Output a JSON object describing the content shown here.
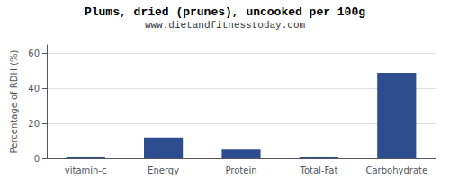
{
  "chart_data": {
    "type": "bar",
    "title": "Plums, dried (prunes), uncooked per 100g",
    "subtitle": "www.dietandfitnesstoday.com",
    "categories": [
      "vitamin-c",
      "Energy",
      "Protein",
      "Total-Fat",
      "Carbohydrate"
    ],
    "values": [
      1.0,
      12.0,
      5.0,
      1.0,
      49.0
    ],
    "color": "#2e4d8e",
    "ylabel": "Percentage of RDH (%)",
    "ylim": [
      0,
      65
    ],
    "yticks": [
      0,
      20,
      40,
      60
    ],
    "grid": true
  }
}
